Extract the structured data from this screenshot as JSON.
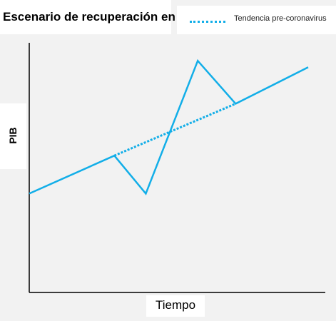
{
  "chart_data": {
    "type": "line",
    "title": "Escenario de recuperación en Z",
    "xlabel": "Tiempo",
    "ylabel": "PIB",
    "xlim": [
      0,
      100
    ],
    "ylim": [
      0,
      100
    ],
    "grid": false,
    "legend": {
      "placement": "top-right",
      "entries": [
        "Tendencia pre-coronavirus"
      ]
    },
    "series": [
      {
        "style": "solid",
        "x": [
          0,
          30.5,
          41.8,
          60.4,
          74.0,
          100
        ],
        "y": [
          39.6,
          54.8,
          39.6,
          92.8,
          75.6,
          90.2
        ]
      },
      {
        "name": "Tendencia pre-coronavirus",
        "style": "dotted",
        "x": [
          30.5,
          74.0
        ],
        "y": [
          54.8,
          75.6
        ]
      }
    ],
    "colors": {
      "line": "#12aee8",
      "background": "#f2f2f2",
      "axis": "#000000"
    }
  }
}
